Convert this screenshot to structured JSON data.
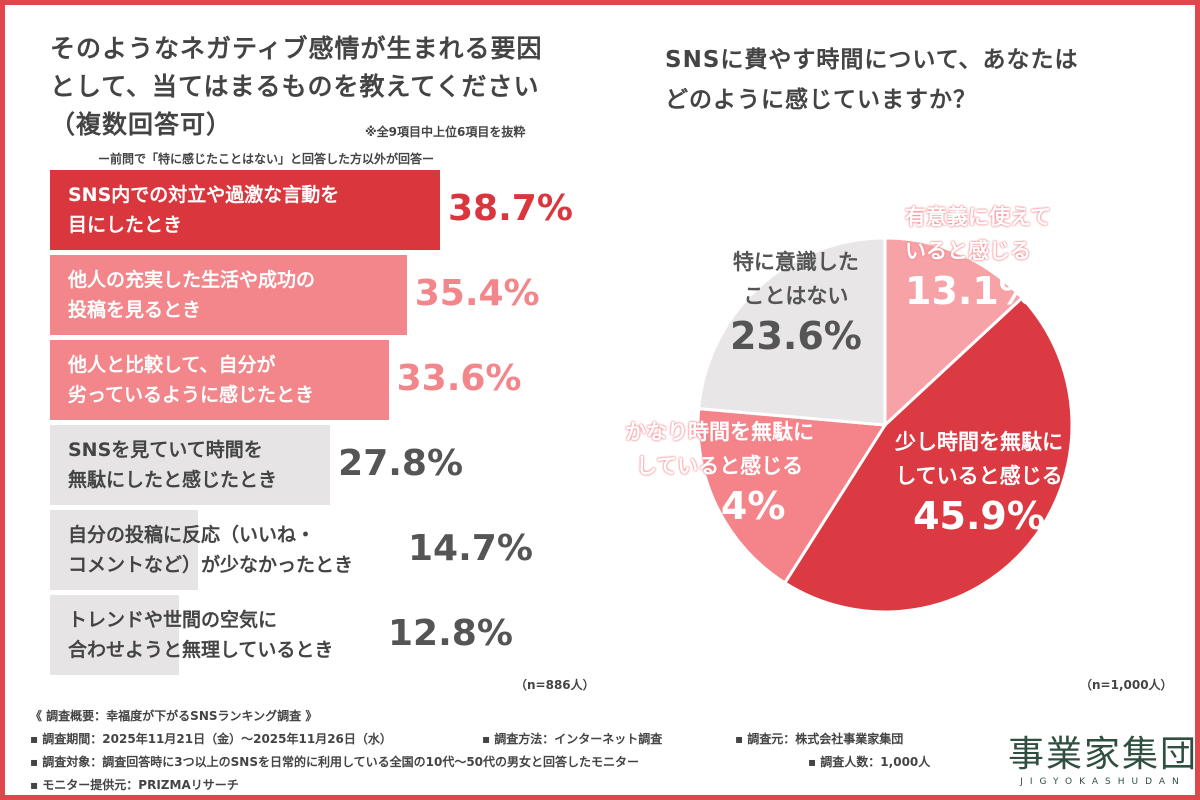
{
  "left": {
    "title_line1": "そのようなネガティブ感情が生まれる要因",
    "title_line2": "として、当てはまるものを教えてください",
    "title_line3": "（複数回答可）",
    "note": "※全9項目中上位6項目を抜粋",
    "subnote": "ー前問で「特に感じたことはない」と回答した方以外が回答ー",
    "n": "（n=886人）"
  },
  "right": {
    "title_line1": "SNSに費やす時間について、あなたは",
    "title_line2": "どのように感じていますか？",
    "n": "（n=1,000人）"
  },
  "chart_data": [
    {
      "type": "bar",
      "orientation": "horizontal",
      "unit": "%",
      "categories": [
        [
          "SNS内での対立や過激な言動を",
          "目にしたとき"
        ],
        [
          "他人の充実した生活や成功の",
          "投稿を見るとき"
        ],
        [
          "他人と比較して、自分が",
          "劣っているように感じたとき"
        ],
        [
          "SNSを見ていて時間を",
          "無駄にしたと感じたとき"
        ],
        [
          "自分の投稿に反応（いいね・",
          "コメントなど）が少なかったとき"
        ],
        [
          "トレンドや世間の空気に",
          "合わせようと無理しているとき"
        ]
      ],
      "values": [
        38.7,
        35.4,
        33.6,
        27.8,
        14.7,
        12.8
      ],
      "labels": [
        "38.7%",
        "35.4%",
        "33.6%",
        "27.8%",
        "14.7%",
        "12.8%"
      ],
      "colors": [
        "#d9363e",
        "#f2868b",
        "#f2868b",
        "#e6e4e5",
        "#e6e4e5",
        "#e6e4e5"
      ]
    },
    {
      "type": "pie",
      "start": "12 o'clock",
      "direction": "clockwise",
      "slices": [
        {
          "label": [
            "有意義に使えて",
            "いると感じる"
          ],
          "value": 13.1,
          "pct": "13.1%",
          "color": "#f7a2a6"
        },
        {
          "label": [
            "少し時間を無駄に",
            "していると感じる"
          ],
          "value": 45.9,
          "pct": "45.9%",
          "color": "#dc3a43"
        },
        {
          "label": [
            "かなり時間を無駄に",
            "していると感じる"
          ],
          "value": 17.4,
          "pct": "17.4%",
          "color": "#f4848a"
        },
        {
          "label": [
            "特に意識した",
            "ことはない"
          ],
          "value": 23.6,
          "pct": "23.6%",
          "color": "#e8e6e7"
        }
      ]
    }
  ],
  "footer": {
    "line1": "《 調査概要：幸福度が下がるSNSランキング調査 》",
    "period": "▪ 調査期間：2025年11月21日（金）～2025年11月26日（水）",
    "method": "▪ 調査方法：インターネット調査",
    "source": "▪ 調査元：株式会社事業家集団",
    "target": "▪ 調査対象：調査回答時に3つ以上のSNSを日常的に利用している全国の10代～50代の男女と回答したモニター",
    "count": "▪ 調査人数：1,000人",
    "provider": "▪ モニター提供元：PRIZMAリサーチ"
  },
  "logo": {
    "kanji": "事業家集団",
    "roman": "JIGYOKASHUDAN"
  }
}
